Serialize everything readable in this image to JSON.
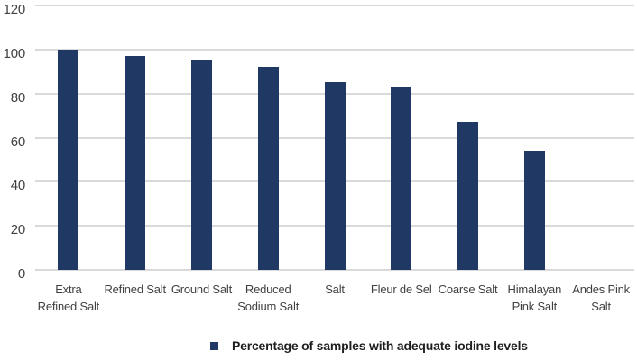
{
  "chart_data": {
    "type": "bar",
    "title": "",
    "xlabel": "",
    "ylabel": "",
    "categories": [
      "Extra Refined Salt",
      "Refined Salt",
      "Ground Salt",
      "Reduced Sodium Salt",
      "Salt",
      "Fleur de Sel",
      "Coarse Salt",
      "Himalayan Pink Salt",
      "Andes Pink Salt"
    ],
    "series": [
      {
        "name": "Percentage of samples with adequate iodine levels",
        "values": [
          100,
          97,
          95,
          92,
          85,
          83,
          67,
          54,
          0
        ]
      }
    ],
    "ylim": [
      0,
      120
    ],
    "yticks": [
      0,
      20,
      40,
      60,
      80,
      100,
      120
    ],
    "grid": true,
    "legend_position": "bottom",
    "colors": {
      "bar": "#1f3864",
      "gridline": "#d9d9d9",
      "axis_text": "#404040",
      "legend_text": "#1f1f1f",
      "background": "#ffffff"
    }
  }
}
